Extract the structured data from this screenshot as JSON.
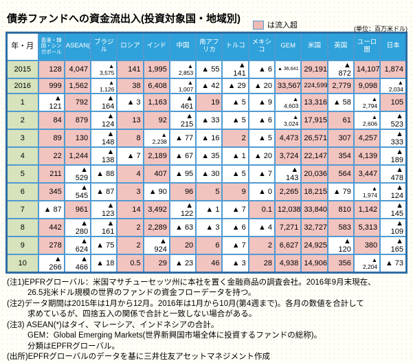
{
  "title": "債券ファンドへの資金流出入(投資対象国・地域別)",
  "legend": {
    "swatch_label": "は流入超",
    "swatch_color": "#f0bab4"
  },
  "unit_label": "(単位：百万米ドル)",
  "colors": {
    "header_blue": "#2fa2db",
    "grid_blue": "#4f9ad2",
    "outer_border": "#2e6da3",
    "inflow_pink": "#f2c4c0",
    "rowlabel_green": "#d6e3bc"
  },
  "table": {
    "corner_header": "年・月",
    "columns": [
      "香港・韓国・シンガポール",
      "ASEAN(*)",
      "ブラジル",
      "ロシア",
      "インド",
      "中国",
      "南アフリカ",
      "トルコ",
      "メキシコ",
      "GEM",
      "米国",
      "英国",
      "ユーロ圏",
      "日本"
    ],
    "negative_marker": "▲",
    "rows": [
      {
        "label": "2015",
        "values": [
          "128",
          "4,047",
          "▲ 3,575",
          "141",
          "1,995",
          "▲ 2,853",
          "▲ 55",
          "▲ 141",
          "▲ 6",
          "▲ 36,641",
          "29,191",
          "▲ 872",
          "14,107",
          "1,874"
        ]
      },
      {
        "label": "2016",
        "values": [
          "999",
          "1,562",
          "▲ 1,126",
          "38",
          "6,408",
          "▲ 1,007",
          "▲ 42",
          "▲ 29",
          "▲ 20",
          "33,567",
          "224,599",
          "2,779",
          "9,098",
          "▲ 2,034"
        ]
      },
      {
        "label": "1",
        "values": [
          "▲ 121",
          "792",
          "▲ 164",
          "▲ 3",
          "1,163",
          "▲ 461",
          "19",
          "▲ 5",
          "▲ 9",
          "▲ 4,603",
          "13,316",
          "▲ 58",
          "▲ 2,794",
          "105"
        ]
      },
      {
        "label": "2",
        "values": [
          "84",
          "879",
          "▲ 124",
          "13",
          "92",
          "▲ 215",
          "▲ 33",
          "▲ 5",
          "▲ 6",
          "▲ 3,024",
          "17,915",
          "61",
          "▲ 2,606",
          "▲ 523"
        ]
      },
      {
        "label": "3",
        "values": [
          "89",
          "130",
          "▲ 148",
          "8",
          "▲ 2,238",
          "▲ 77",
          "▲ 16",
          "2",
          "▲ 5",
          "4,473",
          "26,571",
          "307",
          "4,257",
          "▲ 333"
        ]
      },
      {
        "label": "4",
        "values": [
          "22",
          "1,244",
          "▲ 138",
          "▲ 7",
          "2,189",
          "▲ 67",
          "▲ 35",
          "▲ 1",
          "▲ 20",
          "3,724",
          "22,147",
          "354",
          "4,139",
          "▲ 189"
        ]
      },
      {
        "label": "5",
        "values": [
          "211",
          "▲ 529",
          "▲ 88",
          "4",
          "407",
          "▲ 95",
          "▲ 30",
          "▲ 5",
          "▲ 7",
          "▲ 143",
          "20,036",
          "564",
          "3,447",
          "▲ 478"
        ]
      },
      {
        "label": "6",
        "values": [
          "345",
          "▲ 545",
          "▲ 87",
          "3",
          "▲ 90",
          "96",
          "5",
          "9",
          "▲ 0",
          "2,265",
          "18,215",
          "▲ 79",
          "▲ 1,974",
          "▲ 124"
        ]
      },
      {
        "label": "7",
        "values": [
          "▲ 87",
          "961",
          "▲ 123",
          "14",
          "3,492",
          "▲ 122",
          "▲ 1",
          "▲ 7",
          "0.1",
          "12,038",
          "33,840",
          "810",
          "1,142",
          "▲ 145"
        ]
      },
      {
        "label": "8",
        "values": [
          "442",
          "▲ 280",
          "▲ 161",
          "2",
          "2,289",
          "▲ 63",
          "▲ 3",
          "▲ 6",
          "▲ 4",
          "7,271",
          "32,727",
          "583",
          "5,313",
          "▲ 109"
        ]
      },
      {
        "label": "9",
        "values": [
          "278",
          "▲ 624",
          "▲ 75",
          "2",
          "▲ 924",
          "20",
          "6",
          "▲ 7",
          "2",
          "6,627",
          "24,925",
          "▲ 120",
          "380",
          "▲ 165"
        ]
      },
      {
        "label": "10",
        "values": [
          "▲ 266",
          "▲ 466",
          "▲ 18",
          "0.5",
          "29",
          "▲ 23",
          "46",
          "▲ 3",
          "28",
          "4,938",
          "14,906",
          "356",
          "▲ 2,204",
          "▲ 73"
        ]
      }
    ]
  },
  "notes": [
    {
      "text": "(注1)EPFRグローバル：米国マサチューセッツ州に本社を置く金融商品の調査会社。2016年9月末現在、",
      "indent": false
    },
    {
      "text": "26.5兆米ドル規模の世界のファンドの資金フローデータを持つ。",
      "indent": true
    },
    {
      "text": "(注2)データ期間は2015年は1月から12月。2016年は1月から10月(第4週まで)。各月の数値を合計して",
      "indent": false
    },
    {
      "text": "求めているが、四捨五入の関係で合計と一致しない場合がある。",
      "indent": true
    },
    {
      "text": "(注3) ASEAN(*)はタイ、マレーシア、インドネシアの合計。",
      "indent": false
    },
    {
      "text": "GEM：Global Emerging Markets(世界新興国市場全体に投資するファンドの総称)。",
      "indent": true
    },
    {
      "text": "分類はEPFRグローバル。",
      "indent": true
    },
    {
      "text": "(出所)EPFRグローバルのデータを基に三井住友アセットマネジメント作成",
      "indent": false
    }
  ]
}
